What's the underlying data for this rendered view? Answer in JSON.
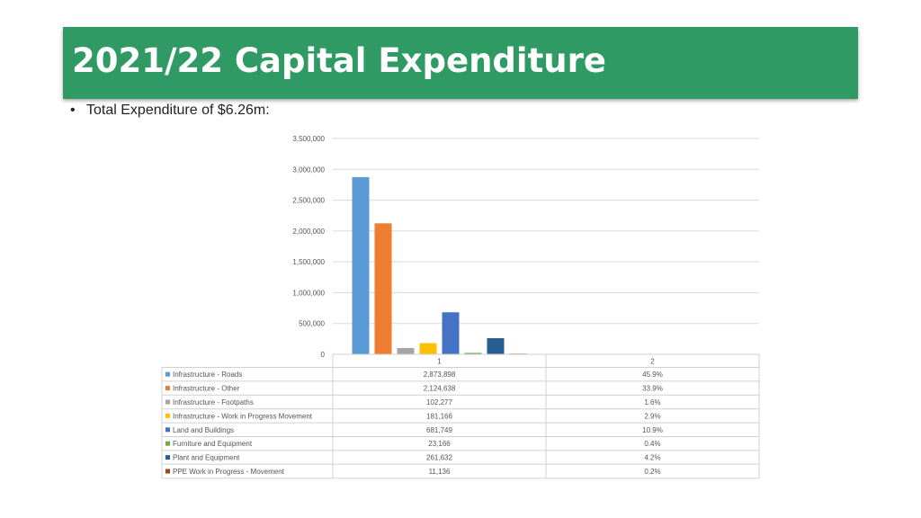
{
  "header": {
    "title": "2021/22 Capital Expenditure"
  },
  "bullet": {
    "text": "Total Expenditure of $6.26m:"
  },
  "chart_data": {
    "type": "bar",
    "categories": [
      "1",
      "2"
    ],
    "ylim": [
      0,
      3500000
    ],
    "yticks": [
      0,
      500000,
      1000000,
      1500000,
      2000000,
      2500000,
      3000000,
      3500000
    ],
    "ytick_labels": [
      "0",
      "500,000",
      "1,000,000",
      "1,500,000",
      "2,000,000",
      "2,500,000",
      "3,000,000",
      "3,500,000"
    ],
    "grid": true,
    "legend": "data-table",
    "series": [
      {
        "name": "Infrastructure - Roads",
        "color": "#5b9bd5",
        "values": [
          2873898,
          45.9
        ],
        "labels": [
          "2,873,898",
          "45.9%"
        ]
      },
      {
        "name": "Infrastructure - Other",
        "color": "#ed7d31",
        "values": [
          2124638,
          33.9
        ],
        "labels": [
          "2,124,638",
          "33.9%"
        ]
      },
      {
        "name": "Infrastructure - Footpaths",
        "color": "#a5a5a5",
        "values": [
          102277,
          1.6
        ],
        "labels": [
          "102,277",
          "1.6%"
        ]
      },
      {
        "name": "Infrastructure - Work in Progress Movement",
        "color": "#ffc000",
        "values": [
          181166,
          2.9
        ],
        "labels": [
          "181,166",
          "2.9%"
        ]
      },
      {
        "name": "Land and Buildings",
        "color": "#4472c4",
        "values": [
          681749,
          10.9
        ],
        "labels": [
          "681,749",
          "10.9%"
        ]
      },
      {
        "name": "Furniture and Equipment",
        "color": "#70ad47",
        "values": [
          23166,
          0.4
        ],
        "labels": [
          "23,166",
          "0.4%"
        ]
      },
      {
        "name": "Plant and Equipment",
        "color": "#255e91",
        "values": [
          261632,
          4.2
        ],
        "labels": [
          "261,632",
          "4.2%"
        ]
      },
      {
        "name": "PPE Work in Progress - Movement",
        "color": "#9e480e",
        "values": [
          11136,
          0.2
        ],
        "labels": [
          "11,136",
          "0.2%"
        ]
      }
    ]
  }
}
